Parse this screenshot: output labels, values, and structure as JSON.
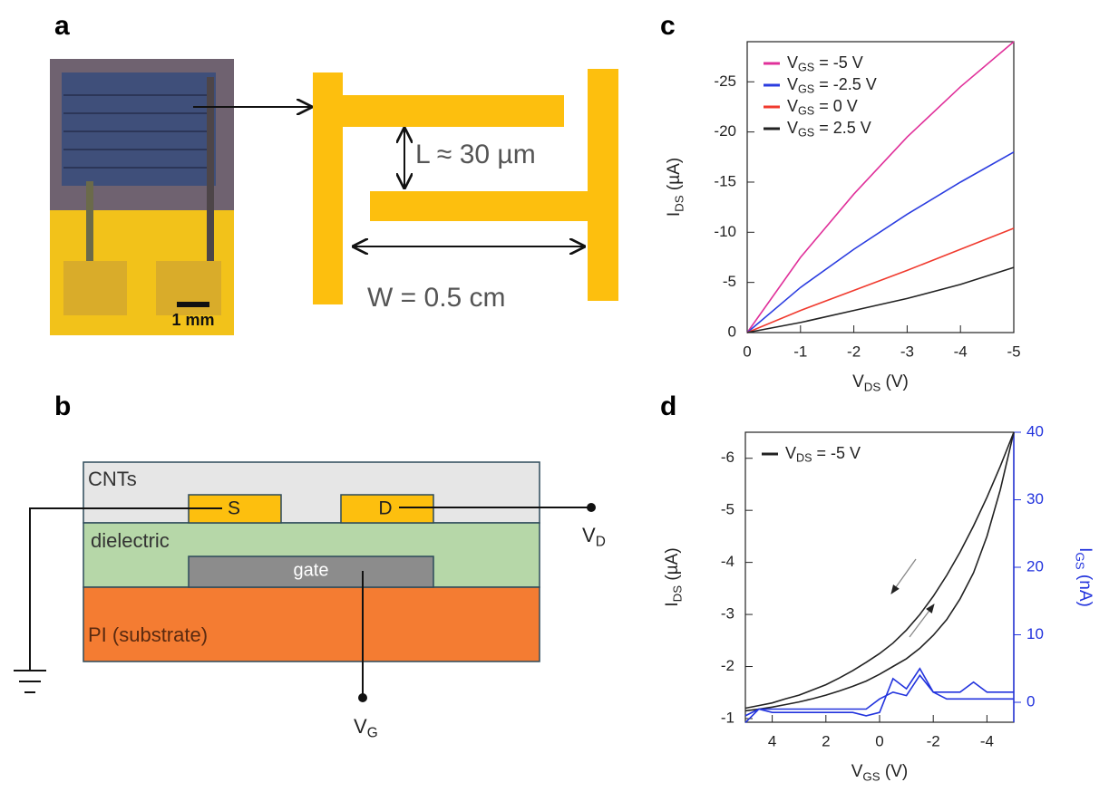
{
  "panel_labels": [
    "a",
    "b",
    "c",
    "d"
  ],
  "panel_a": {
    "scale_bar": "1 mm",
    "length_label": "L ≈ 30 µm",
    "width_label": "W = 0.5 cm"
  },
  "panel_b": {
    "cnt_layer": "CNTs",
    "source": "S",
    "drain": "D",
    "dielectric_layer": "dielectric",
    "gate": "gate",
    "substrate_layer": "PI (substrate)",
    "drain_terminal": "VD",
    "gate_terminal": "VG"
  },
  "chart_data": [
    {
      "type": "line",
      "xlabel": "VDS (V)",
      "ylabel": "IDS (µA)",
      "x": [
        0,
        -1,
        -2,
        -3,
        -4,
        -5
      ],
      "xlim": [
        0,
        -5
      ],
      "xticks": [
        0,
        -1,
        -2,
        -3,
        -4,
        -5
      ],
      "ylim": [
        0,
        -29
      ],
      "yticks": [
        0,
        -5,
        -10,
        -15,
        -20,
        -25
      ],
      "series": [
        {
          "name": "VGS = -5 V",
          "color": "#e0309a",
          "values": [
            0,
            -7.5,
            -13.8,
            -19.5,
            -24.5,
            -29
          ]
        },
        {
          "name": "VGS = -2.5 V",
          "color": "#2b3de0",
          "values": [
            0,
            -4.5,
            -8.3,
            -11.8,
            -15,
            -18
          ]
        },
        {
          "name": "VGS = 0 V",
          "color": "#f03a2e",
          "values": [
            0,
            -2.2,
            -4.2,
            -6.2,
            -8.3,
            -10.4
          ]
        },
        {
          "name": "VGS = 2.5 V",
          "color": "#222222",
          "values": [
            0,
            -1.0,
            -2.2,
            -3.4,
            -4.8,
            -6.5
          ]
        }
      ]
    },
    {
      "type": "line",
      "xlabel": "VGS (V)",
      "ylabel": "IDS (µA)",
      "y2label": "IGS (nA)",
      "y2color": "#2233dd",
      "x": [
        5,
        4.5,
        4,
        3.5,
        3,
        2.5,
        2,
        1.5,
        1,
        0.5,
        0,
        -0.5,
        -1,
        -1.5,
        -2,
        -2.5,
        -3,
        -3.5,
        -4,
        -4.5,
        -5
      ],
      "xlim": [
        5,
        -5
      ],
      "xticks": [
        4,
        2,
        0,
        -2,
        -4
      ],
      "ylim": [
        -0.93,
        -6.5
      ],
      "yticks": [
        -1,
        -2,
        -3,
        -4,
        -5,
        -6
      ],
      "y2lim": [
        -2.95,
        40
      ],
      "y2ticks": [
        0,
        10,
        20,
        30,
        40
      ],
      "series": [
        {
          "name": "VDS = -5 V",
          "color": "#222222",
          "values": [
            -1.2,
            -1.25,
            -1.3,
            -1.38,
            -1.45,
            -1.55,
            -1.65,
            -1.78,
            -1.92,
            -2.08,
            -2.25,
            -2.45,
            -2.7,
            -3.0,
            -3.35,
            -3.75,
            -4.2,
            -4.7,
            -5.25,
            -5.85,
            -6.5
          ]
        },
        {
          "color": "#222222",
          "values": [
            -1.15,
            -1.18,
            -1.22,
            -1.27,
            -1.32,
            -1.38,
            -1.45,
            -1.53,
            -1.62,
            -1.72,
            -1.85,
            -2.0,
            -2.15,
            -2.35,
            -2.6,
            -2.9,
            -3.3,
            -3.8,
            -4.5,
            -5.4,
            -6.5
          ]
        },
        {
          "color": "#2233dd",
          "axis": "y2",
          "values": [
            -2,
            -1,
            -1.5,
            -1.5,
            -1.5,
            -1.5,
            -1.5,
            -1.5,
            -1.5,
            -2,
            -1.5,
            3.5,
            2,
            5,
            1.5,
            1.5,
            1.5,
            3,
            1.5,
            1.5,
            1.5
          ]
        },
        {
          "color": "#2233dd",
          "axis": "y2",
          "values": [
            -3,
            -1,
            -1,
            -1,
            -1,
            -1,
            -1,
            -1,
            -1,
            -1,
            0.5,
            1.5,
            1,
            4,
            1.5,
            0.5,
            0.5,
            0.5,
            0.5,
            0.5,
            0.5
          ]
        }
      ]
    }
  ]
}
